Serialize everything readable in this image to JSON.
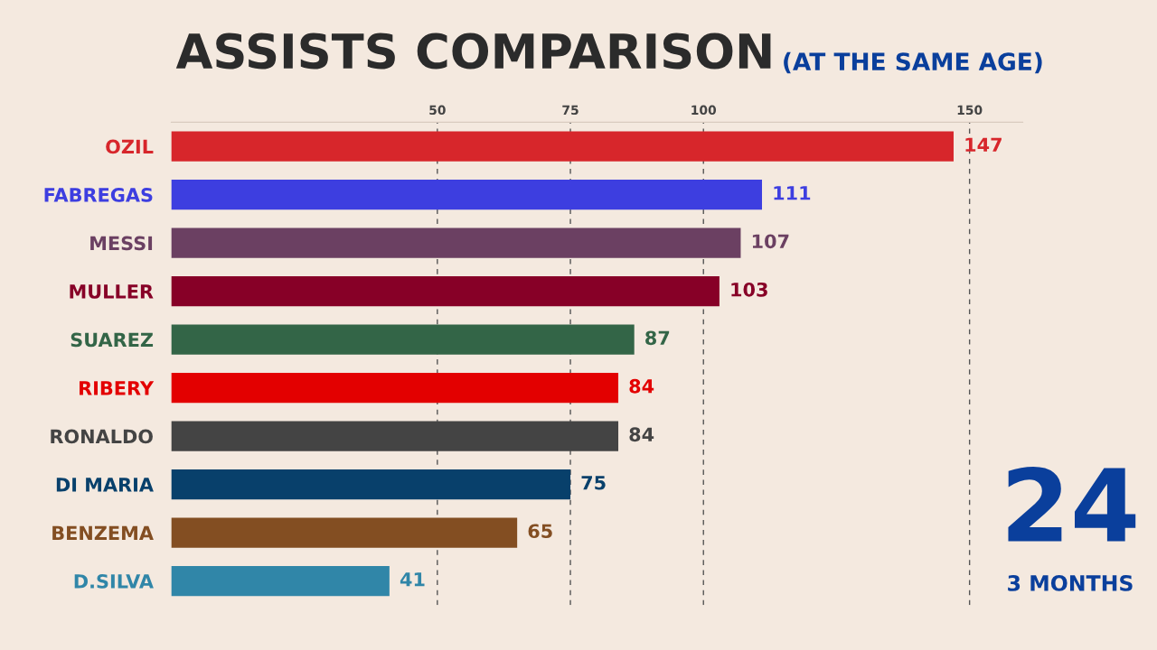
{
  "chart_data": {
    "type": "bar",
    "orientation": "horizontal",
    "title": "ASSISTS COMPARISON",
    "subtitle": "(AT THE SAME AGE)",
    "categories": [
      "OZIL",
      "FABREGAS",
      "MESSI",
      "MULLER",
      "SUAREZ",
      "RIBERY",
      "RONALDO",
      "DI MARIA",
      "BENZEMA",
      "D.SILVA"
    ],
    "values": [
      147,
      111,
      107,
      103,
      87,
      84,
      84,
      75,
      65,
      41
    ],
    "colors": [
      "#d7262b",
      "#3d3ee0",
      "#6b4062",
      "#870027",
      "#336547",
      "#e30000",
      "#444444",
      "#08406b",
      "#834e22",
      "#3086a8"
    ],
    "xlim": [
      0,
      160
    ],
    "xticks": [
      50,
      75,
      100,
      150
    ],
    "grid": "x",
    "data_labels": true,
    "annotations": [
      "24",
      "3 MONTHS"
    ]
  }
}
